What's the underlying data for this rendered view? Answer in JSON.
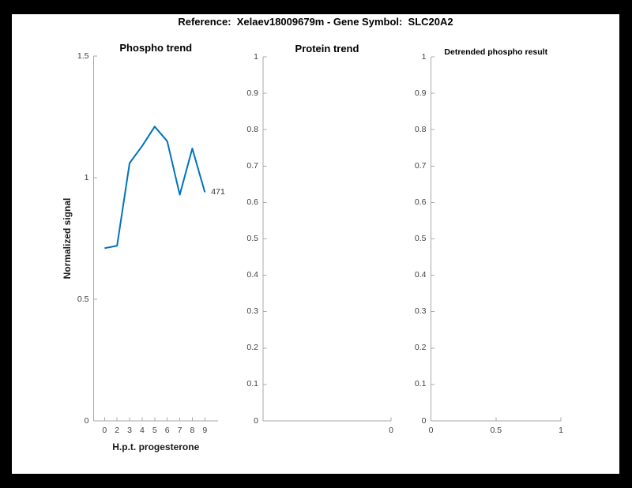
{
  "window": {
    "background": "#000000",
    "figure_background": "#ffffff"
  },
  "figure_title": "Reference:  Xelaev18009679m - Gene Symbol:  SLC20A2",
  "colors": {
    "line": "#0072BD",
    "axis": "#a9a9a9",
    "tick_label": "#404040",
    "title": "#000000",
    "annotation": "#333333"
  },
  "chart_data": [
    {
      "type": "line",
      "title": "Phospho trend",
      "xlabel": "H.p.t. progesterone",
      "ylabel": "Normalized signal",
      "x_tick_labels": [
        "0",
        "2",
        "3",
        "4",
        "5",
        "6",
        "7",
        "8",
        "9"
      ],
      "y_tick_labels": [
        "0",
        "0.5",
        "1",
        "1.5"
      ],
      "ylim": [
        0,
        1.5
      ],
      "grid": false,
      "box": false,
      "series": [
        {
          "name": "471",
          "values": [
            0.71,
            0.72,
            1.06,
            1.13,
            1.21,
            1.15,
            0.93,
            1.12,
            0.94
          ]
        }
      ],
      "end_label": "471"
    },
    {
      "type": "line",
      "title": "Protein trend",
      "xlabel": "",
      "ylabel": "",
      "x_tick_labels": [
        "0"
      ],
      "y_tick_labels": [
        "0",
        "0.1",
        "0.2",
        "0.3",
        "0.4",
        "0.5",
        "0.6",
        "0.7",
        "0.8",
        "0.9",
        "1"
      ],
      "ylim": [
        0,
        1
      ],
      "grid": false,
      "box": false,
      "series": []
    },
    {
      "type": "line",
      "title": "Detrended phospho result",
      "xlabel": "",
      "ylabel": "",
      "x_tick_labels": [
        "0",
        "0.5",
        "1"
      ],
      "y_tick_labels": [
        "0",
        "0.1",
        "0.2",
        "0.3",
        "0.4",
        "0.5",
        "0.6",
        "0.7",
        "0.8",
        "0.9",
        "1"
      ],
      "ylim": [
        0,
        1
      ],
      "grid": false,
      "box": false,
      "series": []
    }
  ]
}
